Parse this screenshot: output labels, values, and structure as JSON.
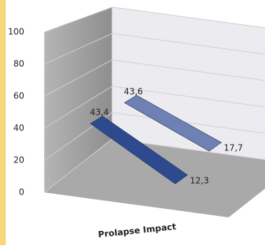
{
  "chart_data": {
    "type": "line",
    "x_label": "Prolapse Impact",
    "categories": [
      null,
      null
    ],
    "series": [
      {
        "color": "#2e4a8f",
        "values": [
          43.4,
          12.3
        ],
        "value_labels": [
          "43,4",
          "12,3"
        ]
      },
      {
        "color": "#6f80b3",
        "values": [
          43.6,
          17.7
        ],
        "value_labels": [
          "43,6",
          "17,7"
        ]
      }
    ],
    "ylim": [
      0,
      100
    ],
    "yticks": [
      0,
      20,
      40,
      60,
      80,
      100
    ],
    "grid": true
  }
}
